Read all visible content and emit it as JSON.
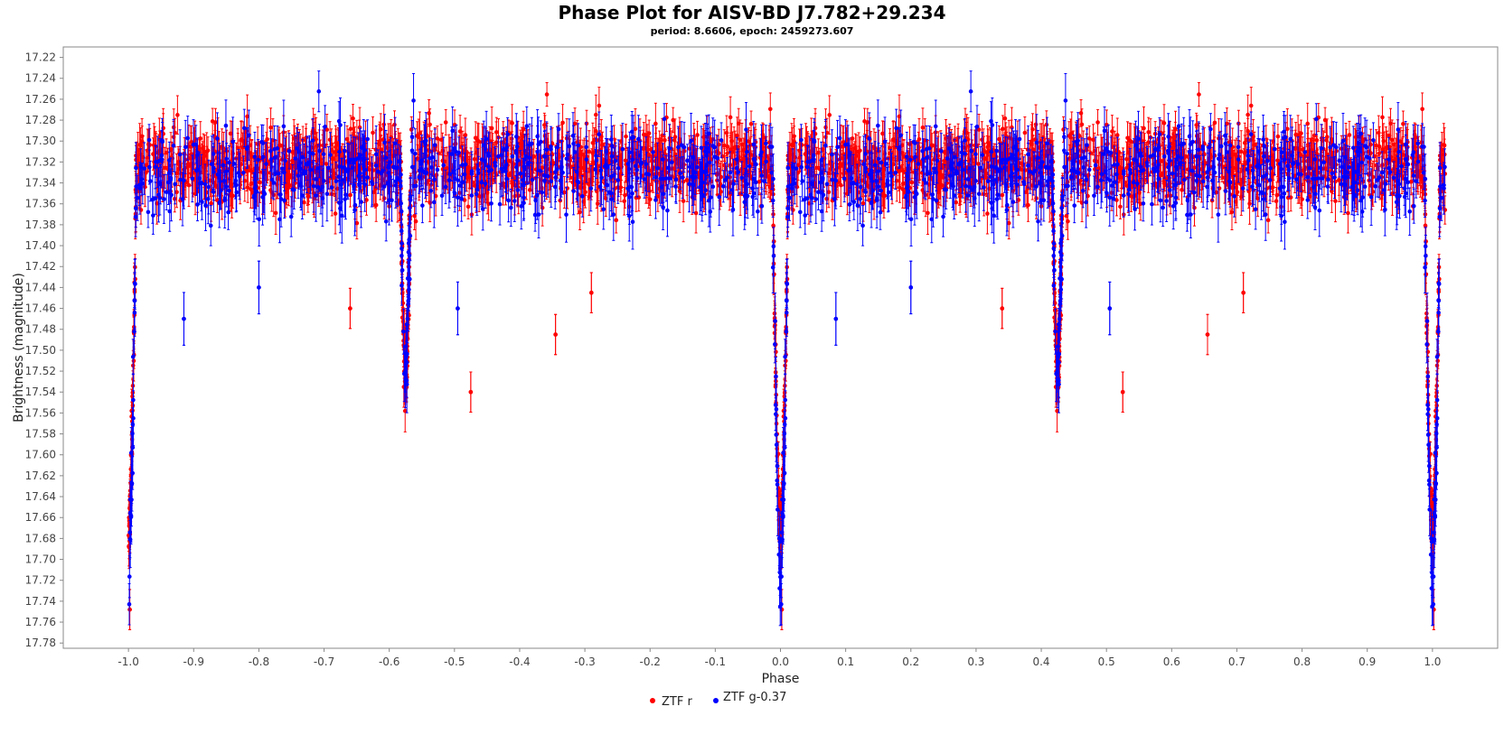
{
  "chart_data": {
    "type": "scatter",
    "title": "Phase Plot for AISV-BD J7.782+29.234",
    "subtitle": "period: 8.6606, epoch: 2459273.607",
    "xlabel": "Phase",
    "ylabel": "Brightness (magnitude)",
    "xlim": [
      -1.1,
      1.1
    ],
    "ylim": [
      17.21,
      17.785
    ],
    "y_inverted": true,
    "xticks": [
      "-1.0",
      "-0.9",
      "-0.8",
      "-0.7",
      "-0.6",
      "-0.5",
      "-0.4",
      "-0.3",
      "-0.2",
      "-0.1",
      "0.0",
      "0.1",
      "0.2",
      "0.3",
      "0.4",
      "0.5",
      "0.6",
      "0.7",
      "0.8",
      "0.9",
      "1.0"
    ],
    "yticks": [
      "17.22",
      "17.24",
      "17.26",
      "17.28",
      "17.30",
      "17.32",
      "17.34",
      "17.36",
      "17.38",
      "17.40",
      "17.42",
      "17.44",
      "17.46",
      "17.48",
      "17.50",
      "17.52",
      "17.54",
      "17.56",
      "17.58",
      "17.60",
      "17.62",
      "17.64",
      "17.66",
      "17.68",
      "17.70",
      "17.72",
      "17.74",
      "17.76",
      "17.78"
    ],
    "grid": false,
    "legend_position": "bottom-center",
    "series": [
      {
        "name": "ZTF r",
        "color": "#ff0000",
        "baseline_mag": 17.322,
        "scatter": 0.017,
        "error": 0.016,
        "primary_eclipse": {
          "phase": 0.0,
          "depth_mag": 17.68,
          "half_width": 0.012
        },
        "secondary_eclipse": {
          "phase": 0.425,
          "depth_mag": 17.53,
          "half_width": 0.008
        },
        "outliers": [
          {
            "x": 0.525,
            "y": 17.54
          },
          {
            "x": -0.475,
            "y": 17.54
          },
          {
            "x": 0.655,
            "y": 17.485
          },
          {
            "x": -0.345,
            "y": 17.485
          },
          {
            "x": 0.71,
            "y": 17.445
          },
          {
            "x": -0.29,
            "y": 17.445
          },
          {
            "x": 0.34,
            "y": 17.46
          },
          {
            "x": -0.66,
            "y": 17.46
          },
          {
            "x": -0.998,
            "y": 17.748
          },
          {
            "x": 0.002,
            "y": 17.748
          }
        ]
      },
      {
        "name": "ZTF g-0.37",
        "color": "#0000ff",
        "baseline_mag": 17.33,
        "scatter": 0.02,
        "error": 0.021,
        "primary_eclipse": {
          "phase": 0.0,
          "depth_mag": 17.715,
          "half_width": 0.012
        },
        "secondary_eclipse": {
          "phase": 0.425,
          "depth_mag": 17.52,
          "half_width": 0.008
        },
        "outliers": [
          {
            "x": 0.085,
            "y": 17.47
          },
          {
            "x": -0.915,
            "y": 17.47
          },
          {
            "x": 0.505,
            "y": 17.46
          },
          {
            "x": -0.495,
            "y": 17.46
          },
          {
            "x": 0.2,
            "y": 17.44
          },
          {
            "x": -0.8,
            "y": 17.44
          }
        ]
      }
    ]
  }
}
